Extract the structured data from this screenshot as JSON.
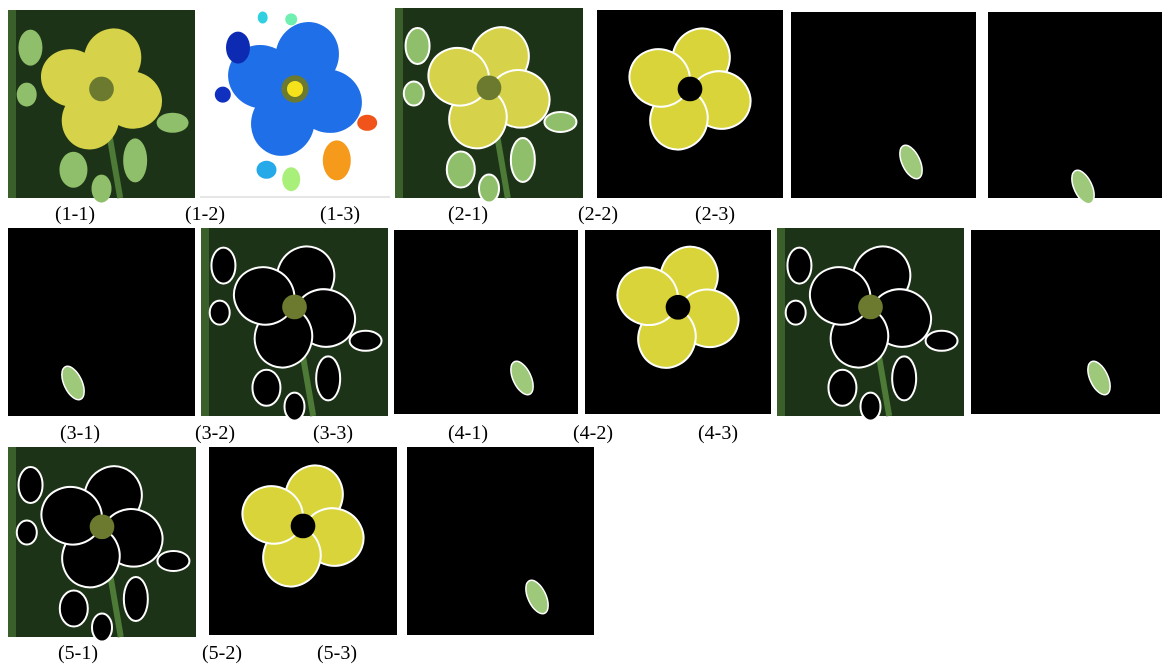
{
  "figure": {
    "rows": [
      [
        "(1-1)",
        "(1-2)",
        "(1-3)",
        "(2-1)",
        "(2-2)",
        "(2-3)"
      ],
      [
        "(3-1)",
        "(3-2)",
        "(3-3)",
        "(4-1)",
        "(4-2)",
        "(4-3)"
      ],
      [
        "(5-1)",
        "(5-2)",
        "(5-3)"
      ]
    ]
  }
}
